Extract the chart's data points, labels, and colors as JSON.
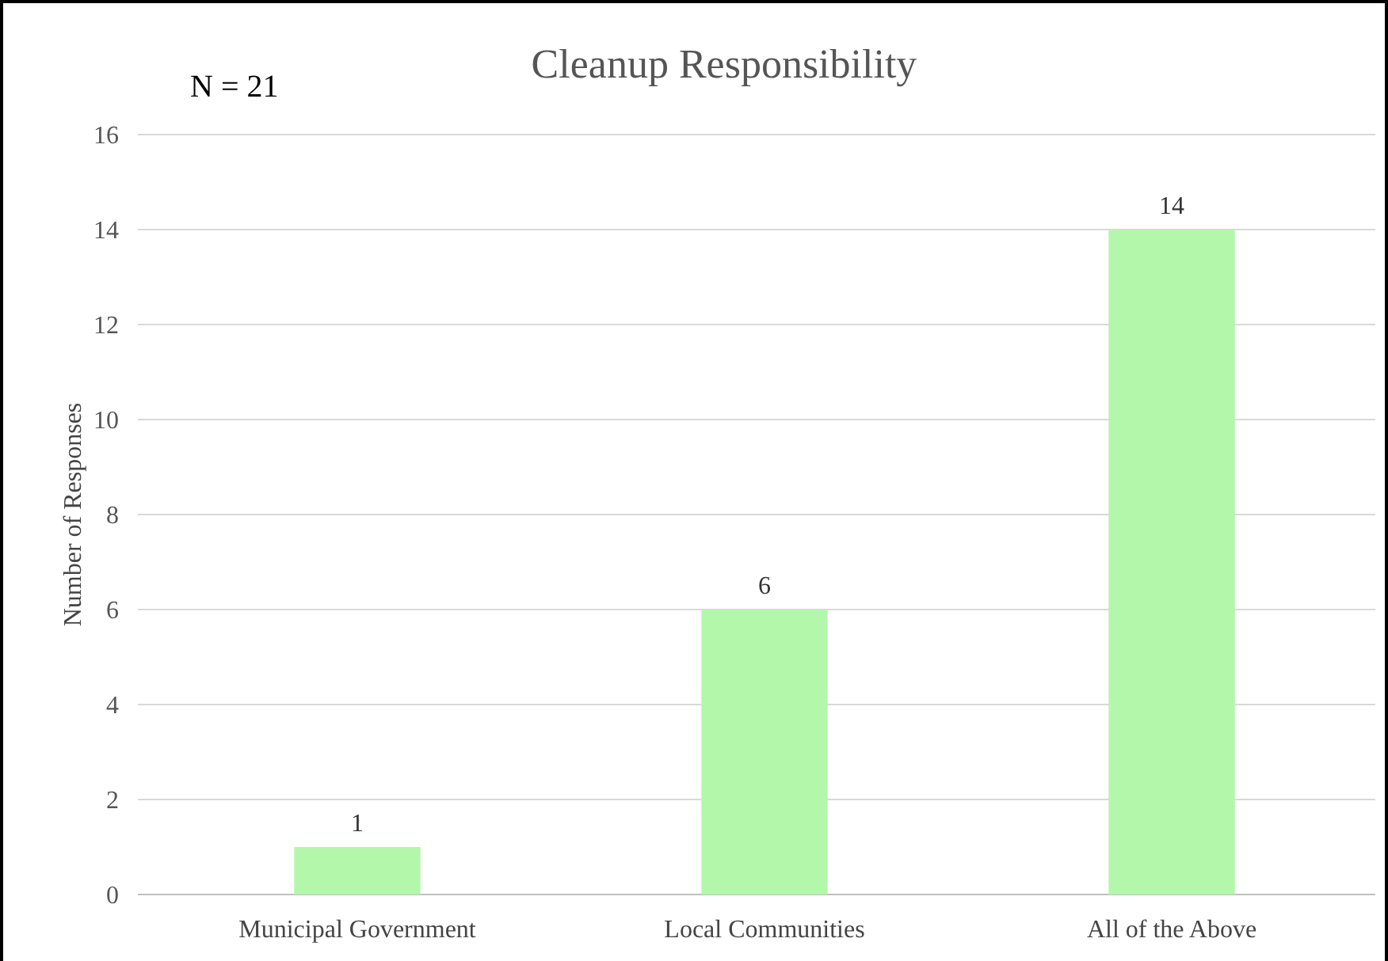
{
  "chart_data": {
    "type": "bar",
    "title": "Cleanup Responsibility",
    "ylabel": "Number of Responses",
    "annotations": [
      "N = 21"
    ],
    "categories": [
      "Municipal Government",
      "Local Communities",
      "All of the Above"
    ],
    "values": [
      1,
      6,
      14
    ],
    "color": "#b3f7aa",
    "ylim": [
      0,
      16
    ],
    "yticks": [
      0,
      2,
      4,
      6,
      8,
      10,
      12,
      14,
      16
    ],
    "grid": "y",
    "data_labels": true
  }
}
